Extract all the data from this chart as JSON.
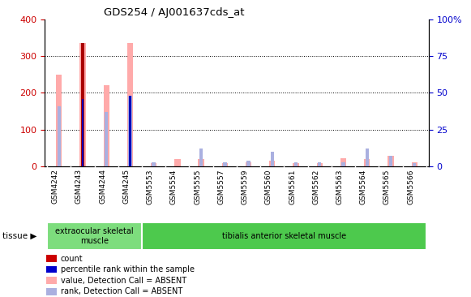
{
  "title": "GDS254 / AJ001637cds_at",
  "samples": [
    "GSM4242",
    "GSM4243",
    "GSM4244",
    "GSM4245",
    "GSM5553",
    "GSM5554",
    "GSM5555",
    "GSM5557",
    "GSM5559",
    "GSM5560",
    "GSM5561",
    "GSM5562",
    "GSM5563",
    "GSM5564",
    "GSM5565",
    "GSM5566"
  ],
  "value_absent": [
    250,
    335,
    220,
    335,
    8,
    20,
    20,
    8,
    12,
    15,
    8,
    8,
    22,
    20,
    28,
    12
  ],
  "rank_absent_pct": [
    41,
    0,
    37,
    48,
    3,
    0,
    12,
    3,
    4,
    10,
    3,
    3,
    3,
    12,
    7,
    2
  ],
  "count_value": [
    0,
    335,
    0,
    0,
    0,
    0,
    0,
    0,
    0,
    0,
    0,
    0,
    0,
    0,
    0,
    0
  ],
  "percentile_rank_pct": [
    0,
    46,
    0,
    48,
    0,
    0,
    0,
    0,
    0,
    0,
    0,
    0,
    0,
    0,
    0,
    0
  ],
  "ylim_left": [
    0,
    400
  ],
  "ylim_right": [
    0,
    100
  ],
  "yticks_left": [
    0,
    100,
    200,
    300,
    400
  ],
  "yticks_right": [
    0,
    25,
    50,
    75,
    100
  ],
  "ytick_labels_right": [
    "0",
    "25",
    "50",
    "75",
    "100%"
  ],
  "ytick_labels_left": [
    "0",
    "100",
    "200",
    "300",
    "400"
  ],
  "tissue_groups": [
    {
      "label": "extraocular skeletal\nmuscle",
      "start": 0,
      "end": 4,
      "color": "#7ddd7d"
    },
    {
      "label": "tibialis anterior skeletal muscle",
      "start": 4,
      "end": 16,
      "color": "#4dc94d"
    }
  ],
  "legend_items": [
    {
      "label": "count",
      "color": "#cc0000"
    },
    {
      "label": "percentile rank within the sample",
      "color": "#0000cc"
    },
    {
      "label": "value, Detection Call = ABSENT",
      "color": "#ffaaaa"
    },
    {
      "label": "rank, Detection Call = ABSENT",
      "color": "#aab0e0"
    }
  ],
  "color_count": "#aa0000",
  "color_percentile": "#0000bb",
  "color_value_absent": "#ffaaaa",
  "color_rank_absent": "#aab0e0",
  "background_color": "#ffffff",
  "axis_color_left": "#cc0000",
  "axis_color_right": "#0000cc"
}
